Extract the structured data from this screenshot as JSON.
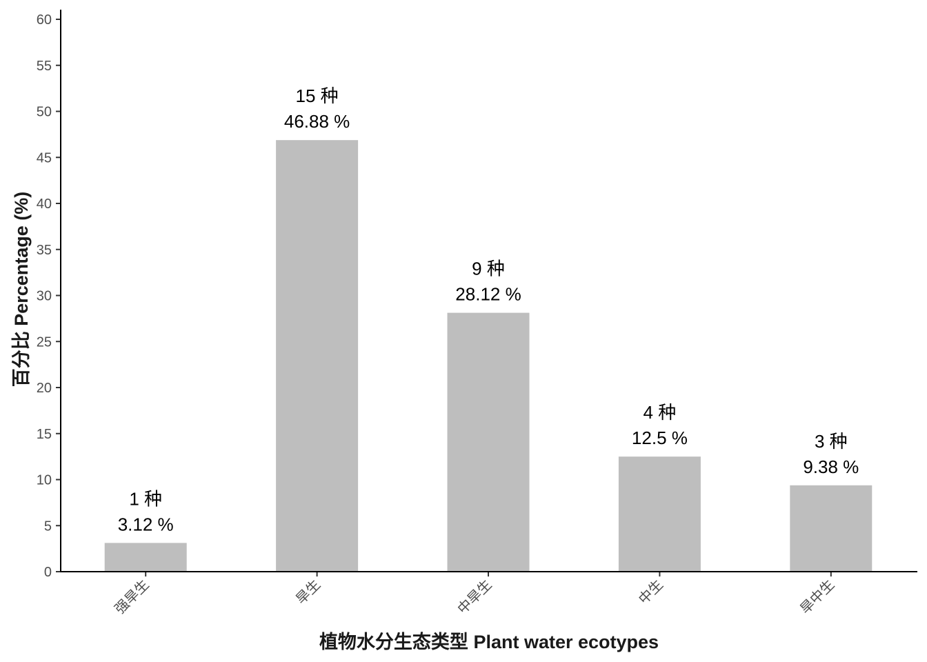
{
  "chart_data": {
    "type": "bar",
    "categories": [
      "强旱生",
      "旱生",
      "中旱生",
      "中生",
      "旱中生"
    ],
    "values": [
      3.12,
      46.88,
      28.12,
      12.5,
      9.38
    ],
    "counts": [
      1,
      15,
      9,
      4,
      3
    ],
    "count_labels": [
      "1 种",
      "15 种",
      "9 种",
      "4 种",
      "3 种"
    ],
    "value_labels": [
      "3.12 %",
      "46.88 %",
      "28.12 %",
      "12.5 %",
      "9.38 %"
    ],
    "title": "",
    "xlabel": "植物水分生态类型 Plant water ecotypes",
    "ylabel": "百分比 Percentage (%)",
    "ylim": [
      0,
      60
    ],
    "yticks": [
      0,
      5,
      10,
      15,
      20,
      25,
      30,
      35,
      40,
      45,
      50,
      55,
      60
    ],
    "grid": false,
    "legend": "none",
    "bar_color": "#bebebe",
    "axis_color": "#000000"
  }
}
